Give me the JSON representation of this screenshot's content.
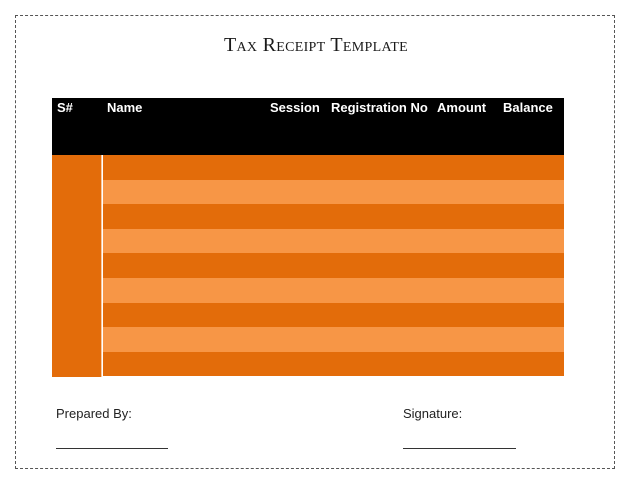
{
  "document": {
    "title": "Tax Receipt Template"
  },
  "table": {
    "columns": [
      "S#",
      "Name",
      "Session",
      "Registration No",
      "Amount",
      "Balance"
    ],
    "row_colors": [
      "#e36c0a",
      "#f79646"
    ],
    "header_color": "#000000",
    "rows": 9
  },
  "footer": {
    "prepared_by": "Prepared By:",
    "signature": "Signature:"
  }
}
